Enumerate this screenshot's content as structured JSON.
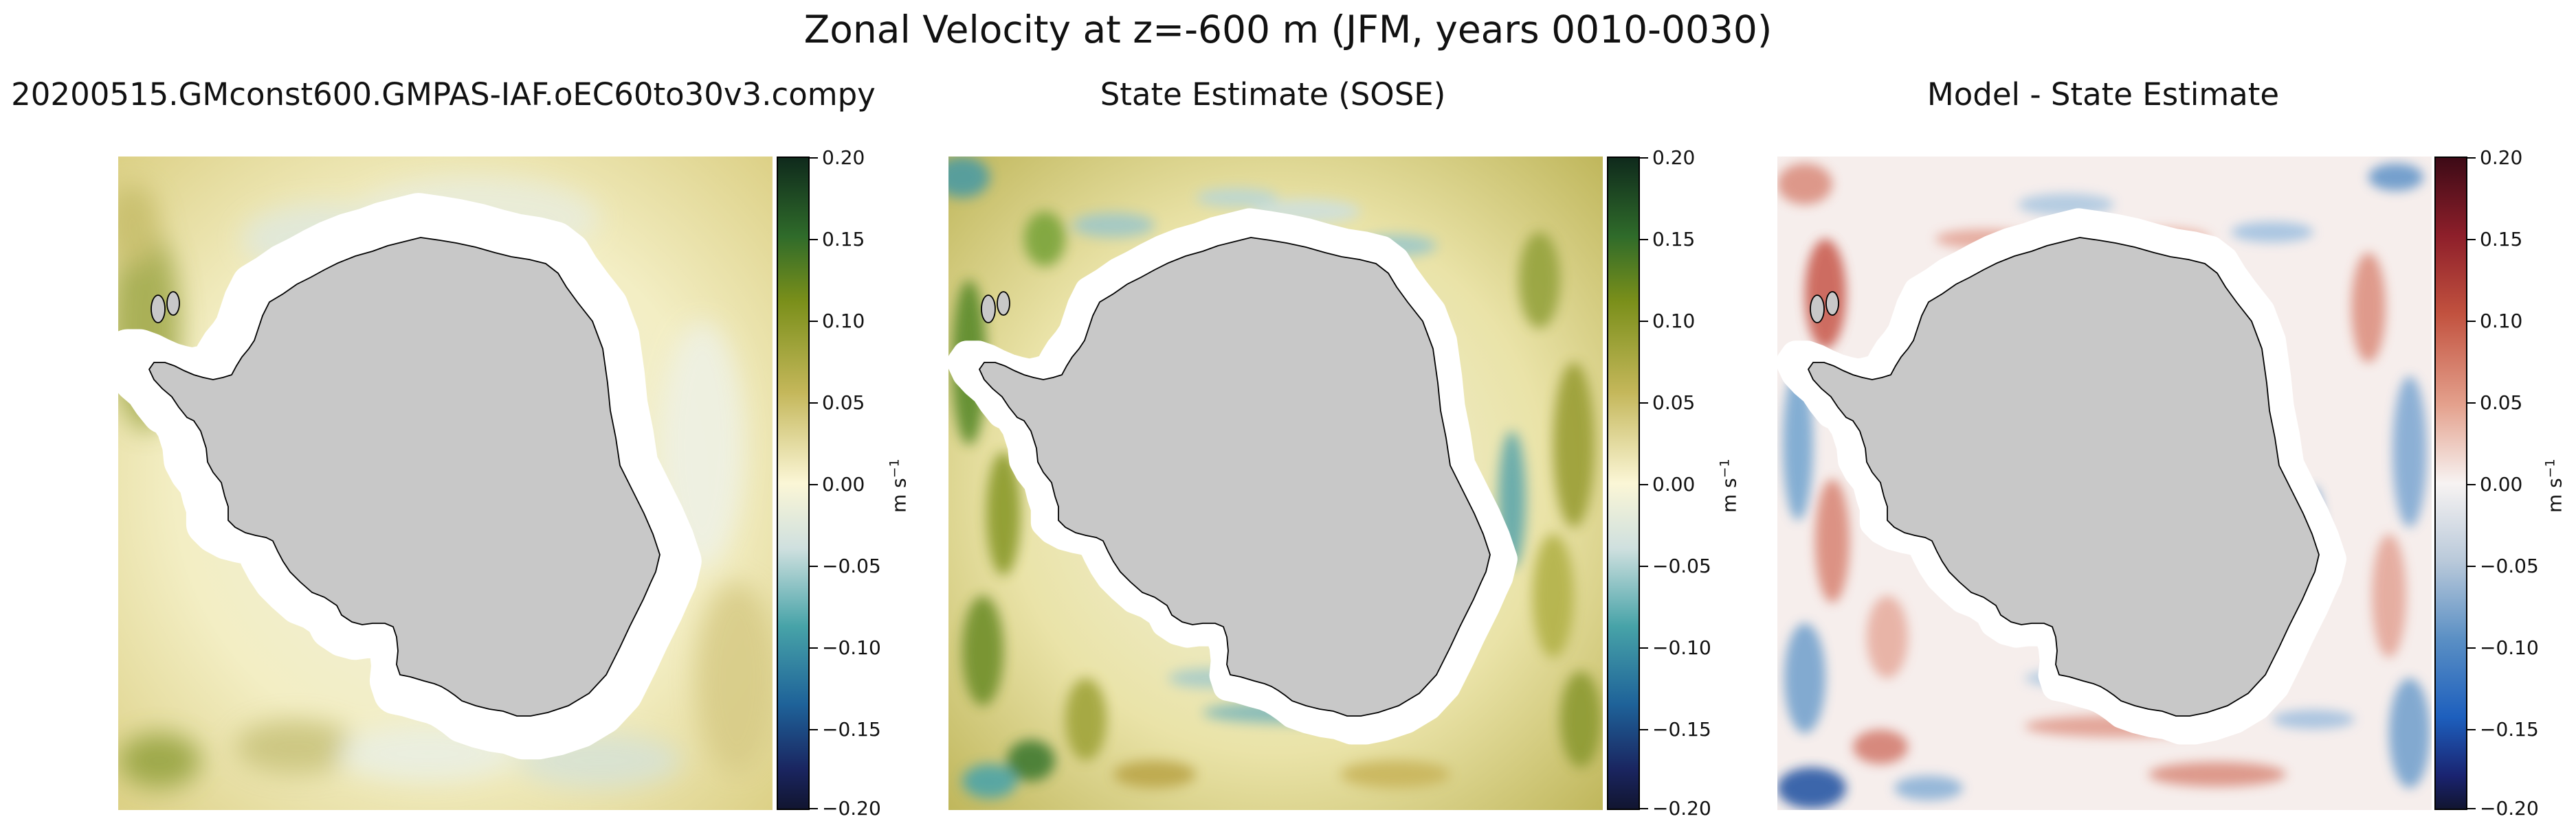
{
  "figure_title": "Zonal Velocity at z=-600 m (JFM, years 0010-0030)",
  "colors": {
    "land": "#c8c8c8",
    "coastline": "#000000",
    "ice_shelf_mask": "#ffffff"
  },
  "panels": [
    {
      "title": "20200515.GMconst600.GMPAS-IAF.oEC60to30v3.compy",
      "colormap": "ocean-curl style (dark navy – teal – cream – olive – dark green)",
      "colorbar": {
        "ticks": [
          "0.20",
          "0.15",
          "0.10",
          "0.05",
          "0.00",
          "−0.05",
          "−0.10",
          "−0.15",
          "−0.20"
        ],
        "unit": "m s",
        "unit_exp": "−1"
      }
    },
    {
      "title": "State Estimate (SOSE)",
      "colormap": "ocean-curl style (dark navy – teal – cream – olive – dark green)",
      "colorbar": {
        "ticks": [
          "0.20",
          "0.15",
          "0.10",
          "0.05",
          "0.00",
          "−0.05",
          "−0.10",
          "−0.15",
          "−0.20"
        ],
        "unit": "m s",
        "unit_exp": "−1"
      }
    },
    {
      "title": "Model - State Estimate",
      "colormap": "diverging balance (dark navy – blue – white – red – dark red)",
      "colorbar": {
        "ticks": [
          "0.20",
          "0.15",
          "0.10",
          "0.05",
          "0.00",
          "−0.05",
          "−0.10",
          "−0.15",
          "−0.20"
        ],
        "unit": "m s",
        "unit_exp": "−1"
      }
    }
  ]
}
